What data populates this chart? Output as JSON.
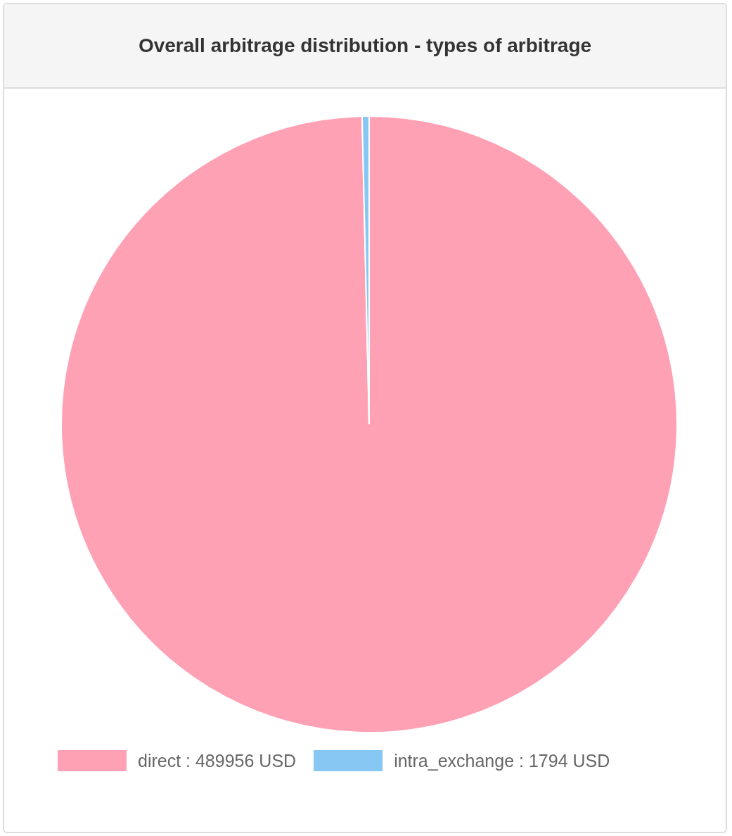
{
  "chart_data": {
    "type": "pie",
    "title": "Overall arbitrage distribution - types of arbitrage",
    "categories": [
      "direct : 489956 USD",
      "intra_exchange : 1794 USD"
    ],
    "values": [
      489956,
      1794
    ],
    "colors": [
      "#ffa1b5",
      "#86c7f3"
    ],
    "legend": "bottom"
  }
}
